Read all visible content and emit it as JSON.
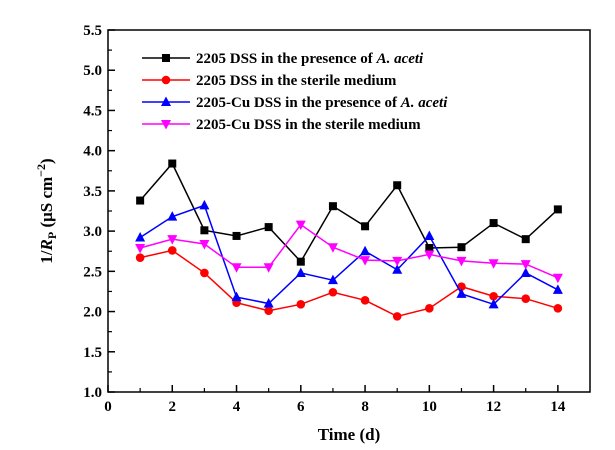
{
  "chart_data": {
    "type": "line",
    "xlabel": "Time (d)",
    "ylabel": "1/RP (μS cm−2)",
    "ylabel_parts": {
      "prefix": "1/",
      "R": "R",
      "sub": "P",
      "unit": " (μS cm",
      "exp": "−2",
      "close": ")"
    },
    "xlim": [
      0,
      15
    ],
    "ylim": [
      1.0,
      5.5
    ],
    "xticks": [
      0,
      2,
      4,
      6,
      8,
      10,
      12,
      14
    ],
    "xtick_labels": [
      "0",
      "2",
      "4",
      "6",
      "8",
      "10",
      "12",
      "14"
    ],
    "yticks": [
      1.0,
      1.5,
      2.0,
      2.5,
      3.0,
      3.5,
      4.0,
      4.5,
      5.0,
      5.5
    ],
    "ytick_labels": [
      "1.0",
      "1.5",
      "2.0",
      "2.5",
      "3.0",
      "3.5",
      "4.0",
      "4.5",
      "5.0",
      "5.5"
    ],
    "grid": false,
    "legend_position": "top-left",
    "x": [
      1,
      2,
      3,
      4,
      5,
      6,
      7,
      8,
      9,
      10,
      11,
      12,
      13,
      14
    ],
    "series": [
      {
        "name": "2205 DSS in the presence of A. aceti",
        "name_parts": [
          "2205 DSS in the presence of ",
          "A. aceti"
        ],
        "color": "#000000",
        "marker": "square",
        "values": [
          3.38,
          3.84,
          3.01,
          2.94,
          3.05,
          2.62,
          3.31,
          3.06,
          3.57,
          2.79,
          2.8,
          3.1,
          2.9,
          3.27
        ]
      },
      {
        "name": "2205 DSS in the sterile medium",
        "name_parts": [
          "2205 DSS in the sterile medium",
          ""
        ],
        "color": "#ff0000",
        "marker": "circle",
        "values": [
          2.67,
          2.76,
          2.48,
          2.11,
          2.01,
          2.09,
          2.24,
          2.14,
          1.94,
          2.04,
          2.31,
          2.19,
          2.16,
          2.04
        ]
      },
      {
        "name": "2205-Cu DSS in the presence of A. aceti",
        "name_parts": [
          "2205-Cu DSS in the presence of ",
          "A. aceti"
        ],
        "color": "#0000ff",
        "marker": "triangle-up",
        "values": [
          2.92,
          3.18,
          3.32,
          2.18,
          2.1,
          2.48,
          2.39,
          2.75,
          2.52,
          2.94,
          2.22,
          2.09,
          2.48,
          2.27
        ]
      },
      {
        "name": "2205-Cu DSS in the sterile medium",
        "name_parts": [
          "2205-Cu DSS in the sterile medium",
          ""
        ],
        "color": "#ff00ff",
        "marker": "triangle-down",
        "values": [
          2.79,
          2.9,
          2.84,
          2.55,
          2.55,
          3.08,
          2.8,
          2.64,
          2.63,
          2.71,
          2.63,
          2.6,
          2.59,
          2.42
        ]
      }
    ]
  }
}
